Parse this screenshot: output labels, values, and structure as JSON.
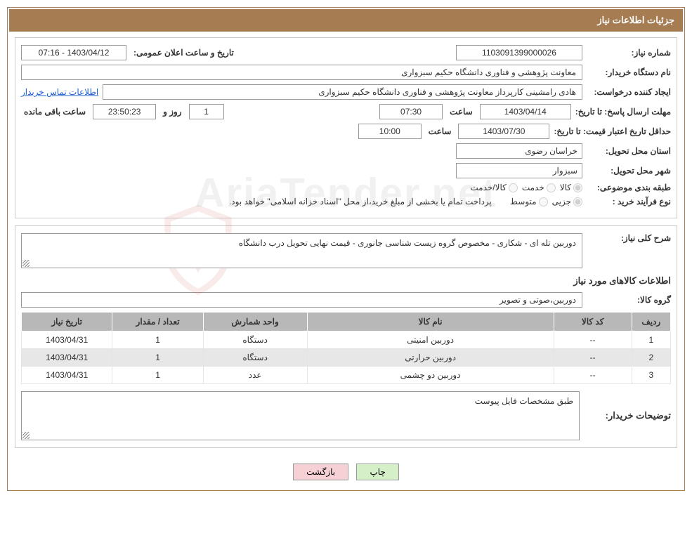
{
  "header": {
    "title": "جزئیات اطلاعات نیاز"
  },
  "need": {
    "number_label": "شماره نیاز:",
    "number": "1103091399000026",
    "announce_label": "تاریخ و ساعت اعلان عمومی:",
    "announce": "1403/04/12 - 07:16"
  },
  "buyer": {
    "org_label": "نام دستگاه خریدار:",
    "org": "معاونت پژوهشی و فناوری دانشگاه حکیم سبزواری"
  },
  "requester": {
    "label": "ایجاد کننده درخواست:",
    "value": "هادی رامشینی کارپرداز معاونت پژوهشی و فناوری دانشگاه حکیم سبزواری",
    "contact_link": "اطلاعات تماس خریدار"
  },
  "deadline": {
    "label": "مهلت ارسال پاسخ:",
    "to_date_lbl": "تا تاریخ:",
    "date": "1403/04/14",
    "time_lbl": "ساعت",
    "time": "07:30",
    "days": "1",
    "days_lbl": "روز و",
    "remain_time": "23:50:23",
    "remain_lbl": "ساعت باقی مانده"
  },
  "valid": {
    "label": "حداقل تاریخ اعتبار قیمت:",
    "to_date_lbl": "تا تاریخ:",
    "date": "1403/07/30",
    "time_lbl": "ساعت",
    "time": "10:00"
  },
  "province": {
    "label": "استان محل تحویل:",
    "value": "خراسان رضوی"
  },
  "city": {
    "label": "شهر محل تحویل:",
    "value": "سبزوار"
  },
  "category": {
    "label": "طبقه بندی موضوعی:",
    "opt_goods": "کالا",
    "opt_service": "خدمت",
    "opt_mixed": "کالا/خدمت"
  },
  "process": {
    "label": "نوع فرآیند خرید :",
    "opt_partial": "جزیی",
    "opt_medium": "متوسط",
    "payment_note": "پرداخت تمام یا بخشی از مبلغ خرید،از محل \"اسناد خزانه اسلامی\" خواهد بود."
  },
  "desc": {
    "label": "شرح کلی نیاز:",
    "text": "دوربین تله ای - شکاری - مخصوص گروه زیست شناسی جانوری - قیمت نهایی تحویل درب دانشگاه"
  },
  "items": {
    "heading": "اطلاعات کالاهای مورد نیاز",
    "group_label": "گروه کالا:",
    "group_value": "دوربین،صوتی و تصویر"
  },
  "table": {
    "cols": [
      "ردیف",
      "کد کالا",
      "نام کالا",
      "واحد شمارش",
      "تعداد / مقدار",
      "تاریخ نیاز"
    ],
    "rows": [
      [
        "1",
        "--",
        "دوربین امنیتی",
        "دستگاه",
        "1",
        "1403/04/31"
      ],
      [
        "2",
        "--",
        "دوربین حرارتی",
        "دستگاه",
        "1",
        "1403/04/31"
      ],
      [
        "3",
        "--",
        "دوربین دو چشمی",
        "عدد",
        "1",
        "1403/04/31"
      ]
    ],
    "col_widths": [
      "6%",
      "12%",
      "38%",
      "16%",
      "14%",
      "14%"
    ],
    "header_bg": "#b8b8b8",
    "alt_bg": "#e7e7e7"
  },
  "buyer_notes": {
    "label": "توضیحات خریدار:",
    "text": "طبق مشخصات فایل پیوست"
  },
  "buttons": {
    "print": "چاپ",
    "back": "بازگشت"
  },
  "colors": {
    "panel_border": "#a67c52",
    "header_bg": "#a67c52",
    "header_fg": "#ffffff",
    "link": "#2060d0",
    "btn_print": "#d5f0c8",
    "btn_back": "#f5d0d5"
  },
  "watermark": {
    "text": "AriaTender.net"
  }
}
